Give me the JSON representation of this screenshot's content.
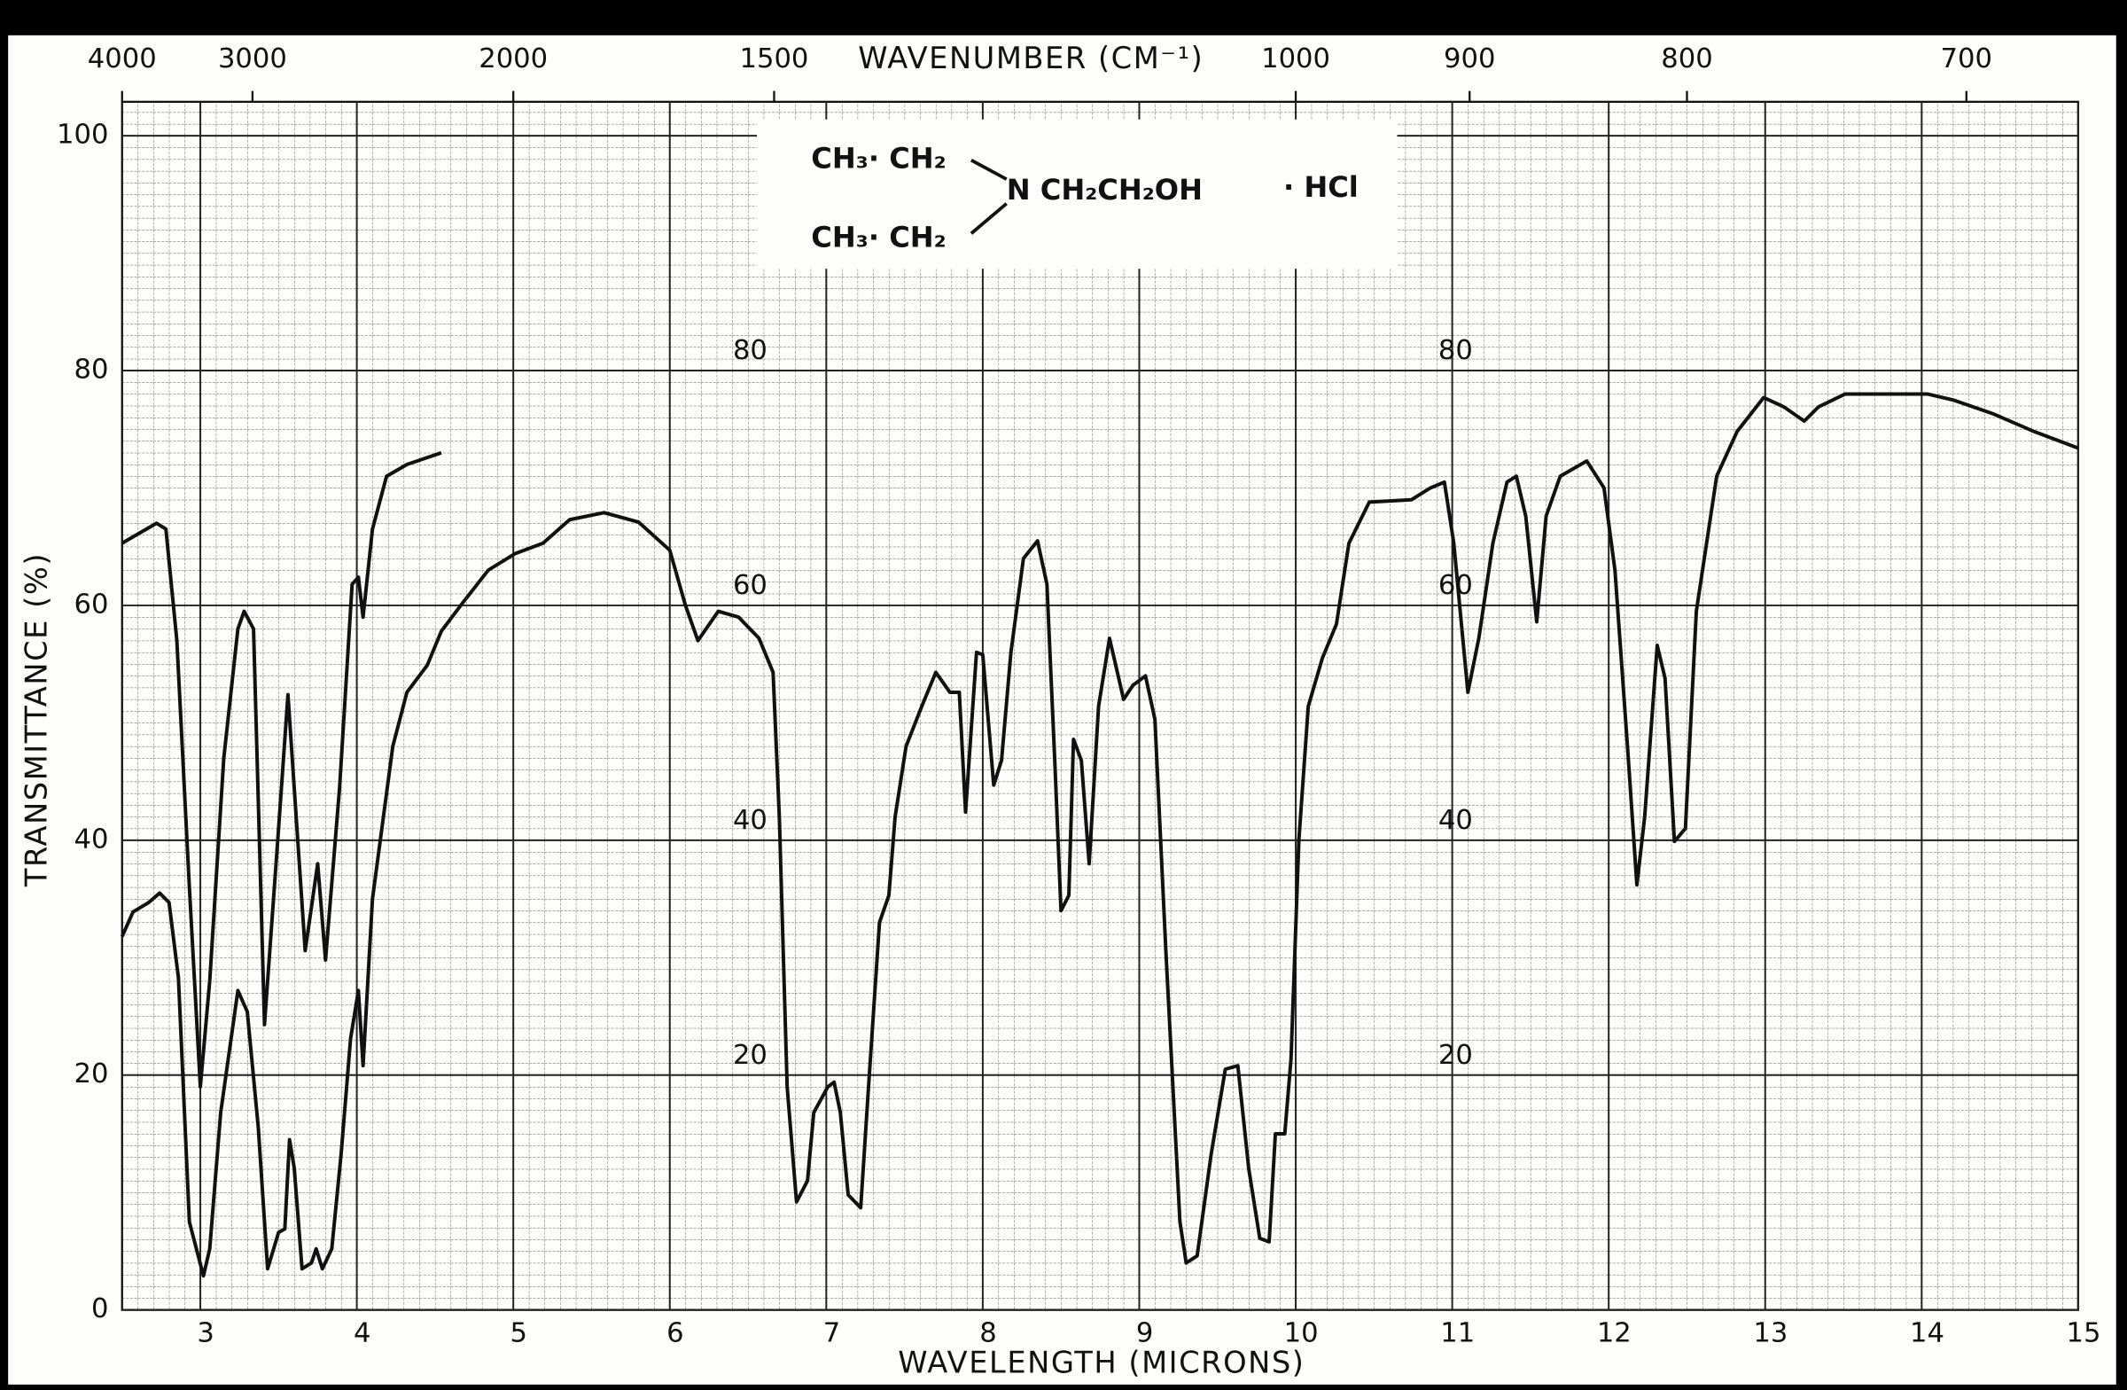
{
  "chart_data": {
    "type": "line",
    "xlabel": "WAVELENGTH (MICRONS)",
    "ylabel": "TRANSMITTANCE (%)",
    "top_axis": {
      "label": "WAVENUMBER (CM⁻¹)",
      "ticks": [
        4000,
        3000,
        2000,
        1500,
        1000,
        900,
        800,
        700
      ]
    },
    "annotations": [
      "CH₃· CH₂",
      "CH₃· CH₂",
      "N CH₂CH₂OH",
      "· HCl"
    ],
    "paper_labels": [
      80,
      60,
      40,
      20
    ],
    "xlim": [
      2.5,
      15
    ],
    "xticks": [
      3,
      4,
      5,
      6,
      7,
      8,
      9,
      10,
      11,
      12,
      13,
      14,
      15
    ],
    "ylim": [
      0,
      100
    ],
    "yticks": [
      0,
      20,
      40,
      60,
      80,
      100
    ],
    "grid": true,
    "series": [
      {
        "color": "#111111",
        "x": [
          2.5,
          2.57,
          2.67,
          2.74,
          2.8,
          2.86,
          2.93,
          3.02,
          3.06,
          3.13,
          3.24,
          3.3,
          3.37,
          3.43,
          3.5,
          3.54,
          3.57,
          3.6,
          3.65,
          3.71,
          3.74,
          3.78,
          3.84,
          3.9,
          3.96,
          4.01,
          4.04,
          4.1,
          4.23,
          4.32,
          4.45,
          4.54,
          4.67,
          4.84,
          5.01,
          5.19,
          5.36,
          5.58,
          5.8,
          6.0,
          6.1,
          6.18,
          6.31,
          6.44,
          6.57,
          6.66,
          6.7,
          6.75,
          6.81,
          6.88,
          6.92,
          7.01,
          7.05,
          7.09,
          7.14,
          7.22,
          7.27,
          7.34,
          7.4,
          7.44,
          7.51,
          7.61,
          7.7,
          7.79,
          7.85,
          7.89,
          7.96,
          8.0,
          8.07,
          8.12,
          8.18,
          8.26,
          8.35,
          8.41,
          8.46,
          8.5,
          8.55,
          8.58,
          8.63,
          8.68,
          8.74,
          8.81,
          8.9,
          8.96,
          9.04,
          9.1,
          9.17,
          9.26,
          9.3,
          9.37,
          9.46,
          9.55,
          9.63,
          9.7,
          9.77,
          9.83,
          9.87,
          9.93,
          9.97,
          10.02,
          10.08,
          10.17,
          10.26,
          10.34,
          10.47,
          10.74,
          10.86,
          10.95,
          11.01,
          11.1,
          11.17,
          11.26,
          11.35,
          11.41,
          11.47,
          11.54,
          11.6,
          11.69,
          11.86,
          11.97,
          12.04,
          12.12,
          12.18,
          12.23,
          12.31,
          12.36,
          12.42,
          12.49,
          12.56,
          12.69,
          12.82,
          12.99,
          13.12,
          13.25,
          13.34,
          13.51,
          13.86,
          14.04,
          14.2,
          14.46,
          14.72,
          15.0
        ],
        "values": [
          31.8,
          33.9,
          34.7,
          35.5,
          34.7,
          28.3,
          7.5,
          2.9,
          5.2,
          16.8,
          27.2,
          25.4,
          15.6,
          3.5,
          6.6,
          6.9,
          14.5,
          12.1,
          3.5,
          4.0,
          5.2,
          3.5,
          5.2,
          13.3,
          23.1,
          27.2,
          20.8,
          35.0,
          48.0,
          52.6,
          54.9,
          57.8,
          60.1,
          63.0,
          64.4,
          65.3,
          67.3,
          67.9,
          67.1,
          64.7,
          60.0,
          57.0,
          59.5,
          59.0,
          57.2,
          54.3,
          42.0,
          19.0,
          9.2,
          11.0,
          16.8,
          19.0,
          19.4,
          16.8,
          9.8,
          8.7,
          19.0,
          33.0,
          35.3,
          42.0,
          48.0,
          51.4,
          54.3,
          52.6,
          52.6,
          42.4,
          56.0,
          55.8,
          44.7,
          46.8,
          56.0,
          64.0,
          65.5,
          61.8,
          46.8,
          34.0,
          35.3,
          48.6,
          46.8,
          38.0,
          51.4,
          57.2,
          52.0,
          53.2,
          54.0,
          50.3,
          30.6,
          7.5,
          4.0,
          4.6,
          13.3,
          20.5,
          20.8,
          12.0,
          6.1,
          5.8,
          15.0,
          15.0,
          21.4,
          40.0,
          51.4,
          55.5,
          58.4,
          65.3,
          68.8,
          69.0,
          70.0,
          70.5,
          65.3,
          52.6,
          57.2,
          65.3,
          70.5,
          71.0,
          67.6,
          58.6,
          67.6,
          71.0,
          72.3,
          70.0,
          63.0,
          48.0,
          36.2,
          42.0,
          56.6,
          53.8,
          39.9,
          41.0,
          59.5,
          71.0,
          74.8,
          77.7,
          76.9,
          75.7,
          76.9,
          78.0,
          78.0,
          78.0,
          77.5,
          76.3,
          74.8,
          73.4
        ]
      },
      {
        "color": "#111111",
        "x": [
          2.5,
          2.72,
          2.78,
          2.85,
          2.93,
          3.0,
          3.06,
          3.15,
          3.24,
          3.28,
          3.34,
          3.41,
          3.5,
          3.56,
          3.67,
          3.75,
          3.8,
          3.89,
          3.97,
          4.01,
          4.04,
          4.1,
          4.19,
          4.32,
          4.54
        ],
        "values": [
          65.3,
          67.0,
          66.5,
          57.0,
          36.0,
          19.0,
          28.0,
          47.0,
          58.0,
          59.5,
          58.0,
          24.3,
          41.0,
          52.4,
          30.6,
          38.0,
          29.8,
          44.5,
          61.8,
          62.4,
          59.0,
          66.5,
          71.0,
          72.0,
          73.0
        ]
      }
    ]
  }
}
